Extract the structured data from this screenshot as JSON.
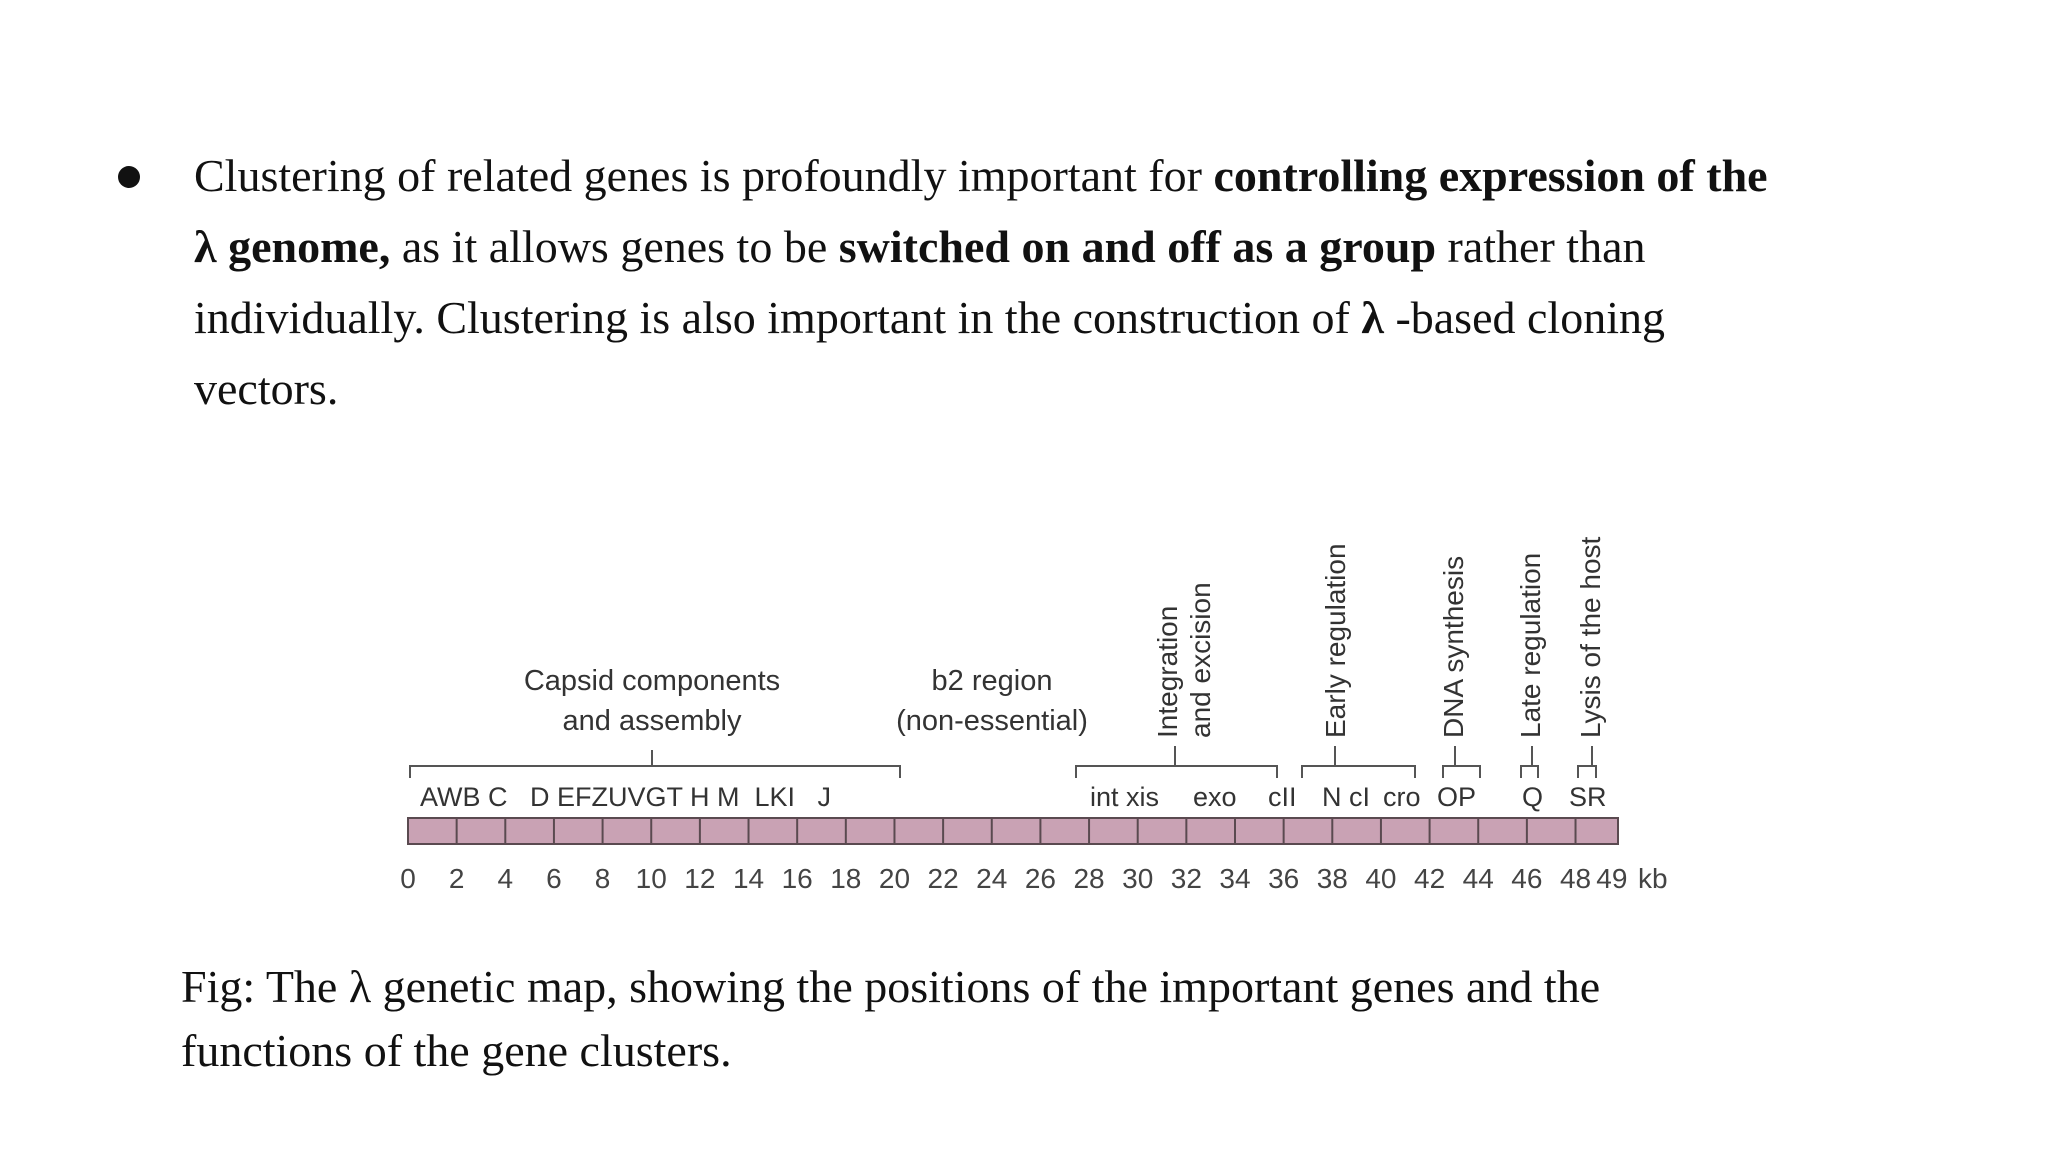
{
  "bullet": {
    "line1_normal": "Clustering of related genes is profoundly important for ",
    "line1_bold": "controlling expression of the",
    "line2_bold_lambda": "λ  genome,",
    "line2_normal_a": " as it allows genes to be ",
    "line2_bold": "switched on and off as a group",
    "line2_normal_b": " rather than",
    "line3_normal": "individually. Clustering is also important in the construction of ",
    "line3_bold_lambda": "λ",
    "line3_normal_b": " -based cloning",
    "line4_normal": "vectors."
  },
  "map": {
    "cluster_capsid_1": "Capsid components",
    "cluster_capsid_2": "and assembly",
    "cluster_b2_1": "b2 region",
    "cluster_b2_2": "(non-essential)",
    "cluster_integration_1": "Integration",
    "cluster_integration_2": "and excision",
    "cluster_early": "Early regulation",
    "cluster_dna": "DNA synthesis",
    "cluster_late": "Late regulation",
    "cluster_lysis": "Lysis of the host",
    "genes_capsid": "AWB C   D EFZUVGT H M  LKI   J",
    "genes_int": "int xis",
    "genes_exo": "exo",
    "genes_cII": "cII",
    "genes_N": "N cI",
    "genes_cro": "cro",
    "genes_OP": "OP",
    "genes_Q": "Q",
    "genes_SR": "SR",
    "scale_ticks": [
      "0",
      "2",
      "4",
      "6",
      "8",
      "10",
      "12",
      "14",
      "16",
      "18",
      "20",
      "22",
      "24",
      "26",
      "28",
      "30",
      "32",
      "34",
      "36",
      "38",
      "40",
      "42",
      "44",
      "46",
      "48",
      "49"
    ],
    "scale_unit": "kb",
    "bar_color": "#c9a2b4",
    "bar_stroke": "#5a4a50"
  },
  "caption": {
    "line1": "Fig: The λ genetic map, showing the positions of the important genes and the",
    "line2": "functions of the gene clusters."
  }
}
